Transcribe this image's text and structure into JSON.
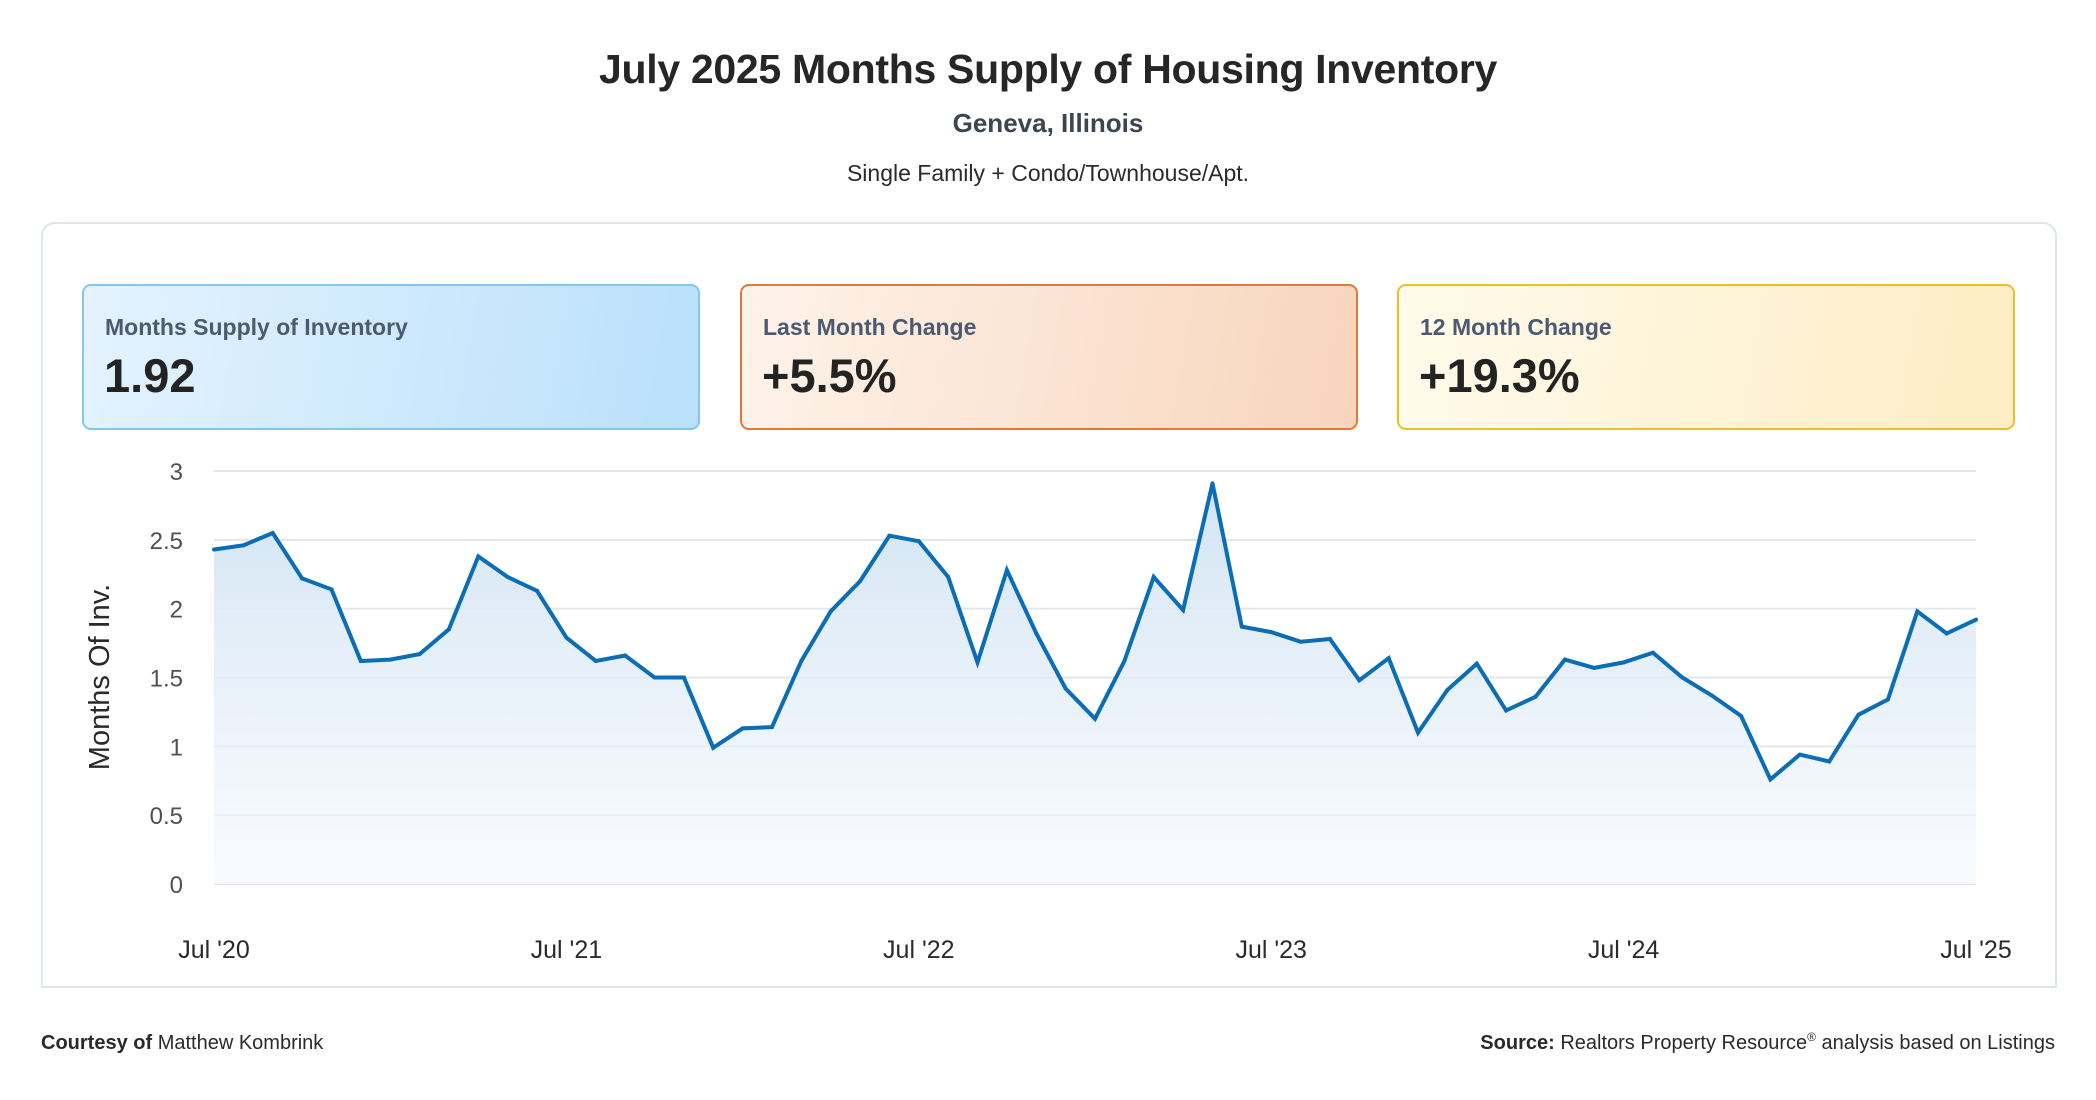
{
  "header": {
    "title": "July 2025 Months Supply of Housing Inventory",
    "location": "Geneva, Illinois",
    "segment": "Single Family + Condo/Townhouse/Apt."
  },
  "kpis": [
    {
      "label": "Months Supply of Inventory",
      "value": "1.92",
      "accent": "#84c6ee"
    },
    {
      "label": "Last Month Change",
      "value": "+5.5%",
      "accent": "#e07a35"
    },
    {
      "label": "12 Month Change",
      "value": "+19.3%",
      "accent": "#ecc024"
    }
  ],
  "footer": {
    "courtesy_label": "Courtesy of",
    "courtesy_name": "Matthew Kombrink",
    "source_label": "Source:",
    "source_text_a": "Realtors Property Resource",
    "source_mark": "®",
    "source_text_b": "analysis based on Listings"
  },
  "chart_data": {
    "type": "area",
    "title": "July 2025 Months Supply of Housing Inventory",
    "xlabel": "",
    "ylabel": "Months Of Inv.",
    "ylim": [
      0,
      3
    ],
    "yticks": [
      0,
      0.5,
      1,
      1.5,
      2,
      2.5,
      3
    ],
    "ytick_labels": [
      "0",
      "0.5",
      "1",
      "1.5",
      "2",
      "2.5",
      "3"
    ],
    "xtick_labels": [
      "Jul '20",
      "Jul '21",
      "Jul '22",
      "Jul '23",
      "Jul '24",
      "Jul '25"
    ],
    "xtick_index": [
      0,
      12,
      24,
      36,
      48,
      60
    ],
    "grid": true,
    "legend": "none",
    "line_color": "#0b6db5",
    "series": [
      {
        "name": "Months Of Inv.",
        "values": [
          2.43,
          2.46,
          2.55,
          2.22,
          2.14,
          1.62,
          1.63,
          1.67,
          1.85,
          2.38,
          2.23,
          2.13,
          1.79,
          1.62,
          1.66,
          1.5,
          1.5,
          0.99,
          1.13,
          1.14,
          1.62,
          1.98,
          2.2,
          2.53,
          2.49,
          2.23,
          1.61,
          2.28,
          1.82,
          1.42,
          1.2,
          1.62,
          2.23,
          1.99,
          2.91,
          1.87,
          1.83,
          1.76,
          1.78,
          1.48,
          1.64,
          1.1,
          1.41,
          1.6,
          1.26,
          1.36,
          1.63,
          1.57,
          1.61,
          1.68,
          1.5,
          1.37,
          1.22,
          0.76,
          0.94,
          0.89,
          1.23,
          1.34,
          1.98,
          1.82,
          1.92
        ]
      }
    ]
  }
}
